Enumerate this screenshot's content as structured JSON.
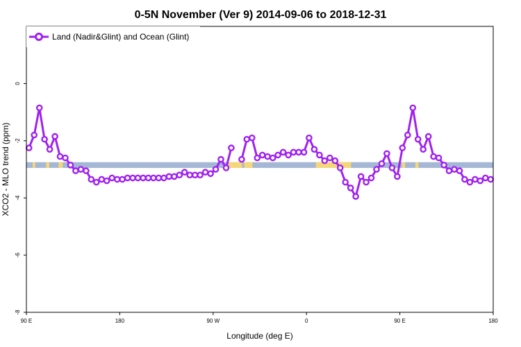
{
  "chart_data": {
    "type": "line",
    "title": "0-5N November (Ver 9)   2014-09-06 to 2018-12-31",
    "xlabel": "Longitude (deg E)",
    "ylabel": "XCO2 - MLO trend (ppm)",
    "x_ticks": [
      {
        "value": 90,
        "label": "90 E"
      },
      {
        "value": 180,
        "label": "180"
      },
      {
        "value": 270,
        "label": "90 W"
      },
      {
        "value": 360,
        "label": "0"
      },
      {
        "value": 450,
        "label": "90 E"
      },
      {
        "value": 540,
        "label": "180"
      }
    ],
    "y_ticks": [
      {
        "value": 0,
        "label": "0"
      },
      {
        "value": -2,
        "label": "-2"
      },
      {
        "value": -4,
        "label": "-4"
      },
      {
        "value": -6,
        "label": "-6"
      },
      {
        "value": -8,
        "label": "-8"
      }
    ],
    "xlim": [
      90,
      540
    ],
    "ylim": [
      -8,
      2
    ],
    "grid": false,
    "legend_position": "top-left",
    "series": [
      {
        "name": "Land (Nadir&Glint) and Ocean (Glint)",
        "color": "#a020f0",
        "x": [
          92.5,
          97.5,
          102.5,
          107.5,
          112.5,
          117.5,
          122.5,
          127.5,
          132.5,
          137.5,
          142.5,
          147.5,
          152.5,
          157.5,
          162.5,
          167.5,
          172.5,
          177.5,
          182.5,
          187.5,
          192.5,
          197.5,
          202.5,
          207.5,
          212.5,
          217.5,
          222.5,
          227.5,
          232.5,
          237.5,
          242.5,
          247.5,
          252.5,
          257.5,
          262.5,
          267.5,
          272.5,
          277.5,
          282.5,
          287.5,
          292.5,
          297.5,
          302.5,
          307.5,
          312.5,
          317.5,
          322.5,
          327.5,
          332.5,
          337.5,
          342.5,
          347.5,
          352.5,
          357.5,
          362.5,
          367.5,
          372.5,
          377.5,
          382.5,
          387.5,
          392.5,
          397.5,
          402.5,
          407.5,
          412.5,
          417.5,
          422.5,
          427.5,
          432.5,
          437.5,
          442.5,
          447.5,
          452.5,
          457.5,
          462.5,
          467.5,
          472.5,
          477.5,
          482.5,
          487.5,
          492.5,
          497.5,
          502.5,
          507.5,
          512.5,
          517.5,
          522.5,
          527.5,
          532.5,
          537.5
        ],
        "y": [
          -2.25,
          -1.8,
          -0.85,
          -1.95,
          -2.3,
          -1.85,
          -2.55,
          -2.6,
          -2.85,
          -3.05,
          -3.0,
          -3.05,
          -3.35,
          -3.45,
          -3.35,
          -3.4,
          -3.3,
          -3.35,
          -3.35,
          -3.3,
          -3.3,
          -3.3,
          -3.3,
          -3.3,
          -3.3,
          -3.3,
          -3.3,
          -3.25,
          -3.25,
          -3.2,
          -3.1,
          -3.2,
          -3.2,
          -3.2,
          -3.1,
          -3.15,
          -3.0,
          -2.65,
          -2.95,
          -2.25,
          null,
          -2.65,
          -1.95,
          -1.9,
          -2.6,
          -2.5,
          -2.55,
          -2.6,
          -2.5,
          -2.4,
          -2.5,
          -2.4,
          -2.4,
          -2.4,
          -1.9,
          -2.3,
          -2.5,
          -2.7,
          -2.6,
          -2.7,
          -2.95,
          -3.45,
          -3.65,
          -3.95,
          -3.25,
          -3.45,
          -3.3,
          -3.0,
          -2.8,
          -2.45,
          -2.95,
          -3.25,
          -2.25,
          -1.8,
          -0.85,
          -1.95,
          -2.3,
          -1.85,
          -2.55,
          -2.6,
          -2.85,
          -3.05,
          -3.0,
          -3.05,
          -3.35,
          -3.45,
          -3.35,
          -3.4,
          -3.3,
          -3.35
        ]
      }
    ],
    "surface_band": {
      "y_range": [
        -2.75,
        -2.95
      ],
      "colors": {
        "ocean": "#a4b7d4",
        "land": "#f5d77a"
      },
      "land_spans": [
        [
          96,
          98.5
        ],
        [
          109,
          112
        ],
        [
          121,
          125
        ],
        [
          285,
          298
        ],
        [
          300,
          308
        ],
        [
          369,
          403
        ],
        [
          452,
          455
        ],
        [
          465,
          468
        ]
      ]
    }
  }
}
